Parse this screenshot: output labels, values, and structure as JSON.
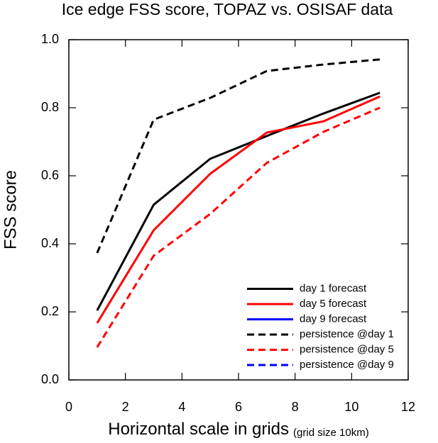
{
  "chart_data": {
    "type": "line",
    "title": "Ice edge FSS score, TOPAZ vs. OSISAF data",
    "x_label": "Horizontal scale in grids",
    "x_label_note": "(grid size 10km)",
    "y_label": "FSS score",
    "x": [
      1,
      3,
      5,
      7,
      9,
      11
    ],
    "series": [
      {
        "name": "day 1 forecast",
        "color": "#000000",
        "dash": false,
        "values": [
          0.204,
          0.515,
          0.65,
          0.717,
          0.783,
          0.844
        ]
      },
      {
        "name": "day 5 forecast",
        "color": "#ff0000",
        "dash": false,
        "values": [
          0.167,
          0.44,
          0.606,
          0.727,
          0.76,
          0.833
        ]
      },
      {
        "name": "day 9 forecast",
        "color": "#0000ff",
        "dash": false,
        "values": [
          null,
          null,
          null,
          null,
          null,
          null
        ]
      },
      {
        "name": "persistence @day 1",
        "color": "#000000",
        "dash": true,
        "values": [
          0.373,
          0.765,
          0.829,
          0.908,
          0.927,
          0.942
        ]
      },
      {
        "name": "persistence @day 5",
        "color": "#ff0000",
        "dash": true,
        "values": [
          0.096,
          0.365,
          0.488,
          0.638,
          0.729,
          0.8
        ]
      },
      {
        "name": "persistence @day 9",
        "color": "#0000ff",
        "dash": true,
        "values": [
          null,
          null,
          null,
          null,
          null,
          null
        ]
      }
    ],
    "xlim": [
      0,
      12
    ],
    "xticks": [
      0,
      2,
      4,
      6,
      8,
      10,
      12
    ],
    "ylim": [
      0,
      1
    ],
    "yticks": [
      {
        "value": 0,
        "label": "0.0"
      },
      0.2,
      0.4,
      0.6,
      0.8,
      {
        "value": 1,
        "label": "1.0"
      }
    ],
    "grid": false,
    "legend": "lower right"
  }
}
